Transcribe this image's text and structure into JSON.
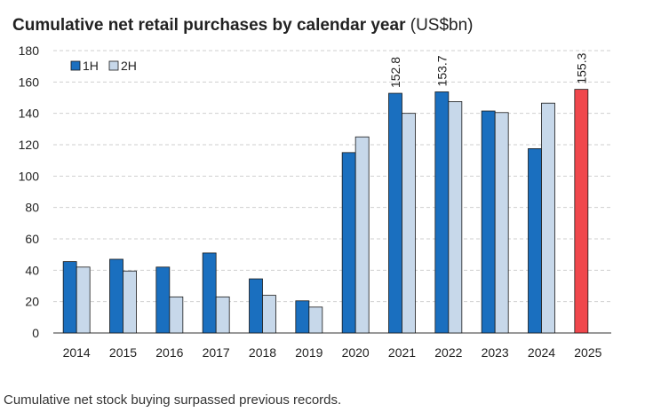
{
  "chart_data": {
    "type": "bar",
    "title": "Cumulative net retail purchases by calendar year",
    "title_unit": "(US$bn)",
    "categories": [
      "2014",
      "2015",
      "2016",
      "2017",
      "2018",
      "2019",
      "2020",
      "2021",
      "2022",
      "2023",
      "2024",
      "2025"
    ],
    "series": [
      {
        "name": "1H",
        "color": "#1a6fbf",
        "values": [
          45.5,
          47,
          42,
          51,
          34.5,
          20.5,
          115,
          152.8,
          153.7,
          141.5,
          117.5,
          155.3
        ]
      },
      {
        "name": "2H",
        "color": "#c7d8ea",
        "values": [
          42,
          39.5,
          23,
          23,
          24,
          16.5,
          125,
          140,
          147.5,
          140.5,
          146.5,
          null
        ]
      }
    ],
    "highlight": {
      "category": "2025",
      "series": "1H",
      "color": "#f0474c"
    },
    "data_labels": [
      {
        "category": "2021",
        "series": "1H",
        "text": "152.8"
      },
      {
        "category": "2022",
        "series": "1H",
        "text": "153.7"
      },
      {
        "category": "2025",
        "series": "1H",
        "text": "155.3"
      }
    ],
    "ylim": [
      0,
      180
    ],
    "yticks": [
      0,
      20,
      40,
      60,
      80,
      100,
      120,
      140,
      160,
      180
    ],
    "grid": true,
    "legend_position": "top-left"
  },
  "caption": "Cumulative net stock buying surpassed previous records."
}
